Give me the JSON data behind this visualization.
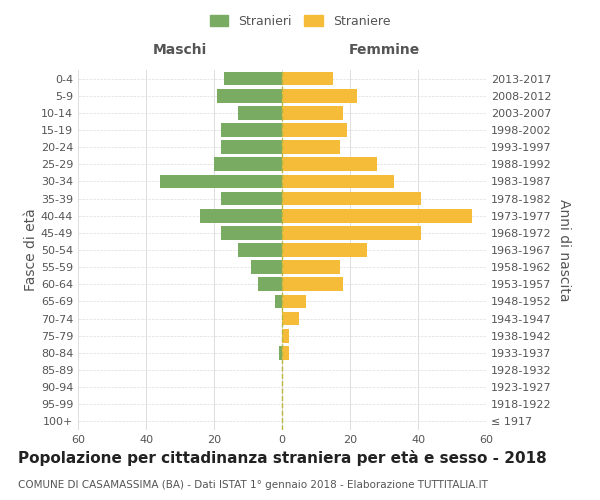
{
  "age_groups": [
    "100+",
    "95-99",
    "90-94",
    "85-89",
    "80-84",
    "75-79",
    "70-74",
    "65-69",
    "60-64",
    "55-59",
    "50-54",
    "45-49",
    "40-44",
    "35-39",
    "30-34",
    "25-29",
    "20-24",
    "15-19",
    "10-14",
    "5-9",
    "0-4"
  ],
  "birth_years": [
    "≤ 1917",
    "1918-1922",
    "1923-1927",
    "1928-1932",
    "1933-1937",
    "1938-1942",
    "1943-1947",
    "1948-1952",
    "1953-1957",
    "1958-1962",
    "1963-1967",
    "1968-1972",
    "1973-1977",
    "1978-1982",
    "1983-1987",
    "1988-1992",
    "1993-1997",
    "1998-2002",
    "2003-2007",
    "2008-2012",
    "2013-2017"
  ],
  "maschi": [
    0,
    0,
    0,
    0,
    1,
    0,
    0,
    2,
    7,
    9,
    13,
    18,
    24,
    18,
    36,
    20,
    18,
    18,
    13,
    19,
    17
  ],
  "femmine": [
    0,
    0,
    0,
    0,
    2,
    2,
    5,
    7,
    18,
    17,
    25,
    41,
    56,
    41,
    33,
    28,
    17,
    19,
    18,
    22,
    15
  ],
  "male_color": "#7aab63",
  "female_color": "#f5bc3a",
  "bar_height": 0.8,
  "xlim": 60,
  "title": "Popolazione per cittadinanza straniera per età e sesso - 2018",
  "subtitle": "COMUNE DI CASAMASSIMA (BA) - Dati ISTAT 1° gennaio 2018 - Elaborazione TUTTITALIA.IT",
  "ylabel_left": "Fasce di età",
  "ylabel_right": "Anni di nascita",
  "label_maschi": "Maschi",
  "label_femmine": "Femmine",
  "legend_stranieri": "Stranieri",
  "legend_straniere": "Straniere",
  "background_color": "#ffffff",
  "grid_color": "#dddddd",
  "text_color": "#555555",
  "title_fontsize": 11,
  "subtitle_fontsize": 7.5,
  "tick_fontsize": 8,
  "label_fontsize": 10
}
